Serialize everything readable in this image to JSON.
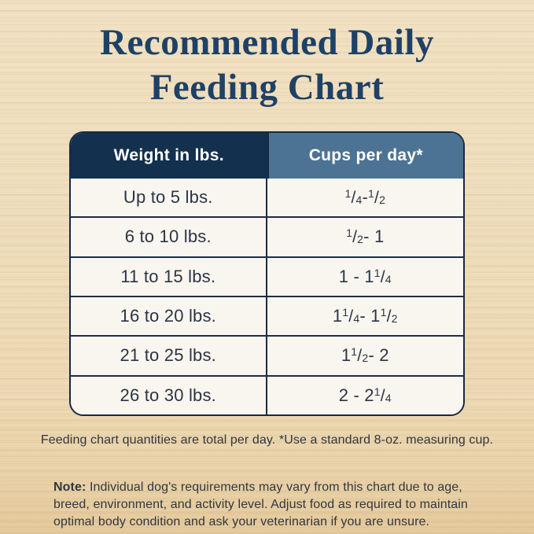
{
  "page": {
    "title_line1": "Recommended Daily",
    "title_line2": "Feeding Chart"
  },
  "table": {
    "headers": [
      {
        "label": "Weight in lbs."
      },
      {
        "label": "Cups per day*"
      }
    ],
    "rows": [
      {
        "weight": "Up to 5 lbs.",
        "cups": "1/4 - 1/2"
      },
      {
        "weight": "6 to 10 lbs.",
        "cups": "1/2 - 1"
      },
      {
        "weight": "11 to 15 lbs.",
        "cups": "1 - 1 1/4"
      },
      {
        "weight": "16 to 20 lbs.",
        "cups": "1 1/4 - 1 1/2"
      },
      {
        "weight": "21 to 25 lbs.",
        "cups": "1 1/2 - 2"
      },
      {
        "weight": "26 to 30 lbs.",
        "cups": "2 - 2 1/4"
      }
    ]
  },
  "footnote": "Feeding chart quantities are total per day. *Use a standard 8-oz. measuring cup.",
  "note": {
    "label": "Note:",
    "text": "Individual dog's requirements may vary from this chart due to age, breed, environment, and activity level. Adjust food as required to maintain optimal body condition and ask your veterinarian if you are unsure."
  },
  "colors": {
    "header_left_bg": "#13304e",
    "header_right_bg": "#4d7394",
    "cell_bg": "#f9f6ef",
    "table_border": "#16293f",
    "title_text": "#1e4166",
    "cell_text": "#2b3446",
    "body_text": "#31363d",
    "wood_base": "#eddbb9"
  },
  "chart_data": {
    "type": "table",
    "title": "Recommended Daily Feeding Chart",
    "columns": [
      "Weight in lbs.",
      "Cups per day*"
    ],
    "rows": [
      [
        "Up to 5 lbs.",
        "1/4 - 1/2"
      ],
      [
        "6 to 10 lbs.",
        "1/2 - 1"
      ],
      [
        "11 to 15 lbs.",
        "1 - 1 1/4"
      ],
      [
        "16 to 20 lbs.",
        "1 1/4 - 1 1/2"
      ],
      [
        "21 to 25 lbs.",
        "1 1/2 - 2"
      ],
      [
        "26 to 30 lbs.",
        "2 - 2 1/4"
      ]
    ],
    "footnotes": [
      "Feeding chart quantities are total per day. *Use a standard 8-oz. measuring cup.",
      "Note: Individual dog's requirements may vary from this chart due to age, breed, environment, and activity level. Adjust food as required to maintain optimal body condition and ask your veterinarian if you are unsure."
    ]
  }
}
